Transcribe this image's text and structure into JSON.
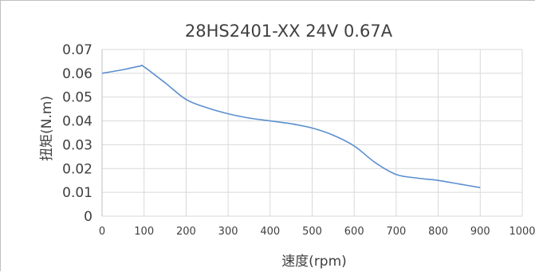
{
  "chart_data": {
    "type": "line",
    "title": "28HS2401-XX  24V  0.67A",
    "xlabel": "速度(rpm)",
    "ylabel": "扭矩(N.m)",
    "xlim": [
      0,
      1000
    ],
    "ylim": [
      0,
      0.07
    ],
    "x_ticks": [
      "0",
      "100",
      "200",
      "300",
      "400",
      "500",
      "600",
      "700",
      "800",
      "900",
      "1000"
    ],
    "y_ticks": [
      "0",
      "0.01",
      "0.02",
      "0.03",
      "0.04",
      "0.05",
      "0.06",
      "0.07"
    ],
    "grid": "vertical and horizontal",
    "series": [
      {
        "color": "#5b8fcf",
        "x": [
          0,
          50,
          90,
          100,
          150,
          200,
          250,
          300,
          350,
          400,
          450,
          500,
          550,
          600,
          650,
          700,
          750,
          800,
          850,
          900
        ],
        "y": [
          0.06,
          0.0615,
          0.063,
          0.0627,
          0.056,
          0.049,
          0.0455,
          0.043,
          0.0412,
          0.04,
          0.0388,
          0.037,
          0.034,
          0.0295,
          0.0225,
          0.0175,
          0.016,
          0.015,
          0.0135,
          0.012
        ]
      }
    ]
  }
}
